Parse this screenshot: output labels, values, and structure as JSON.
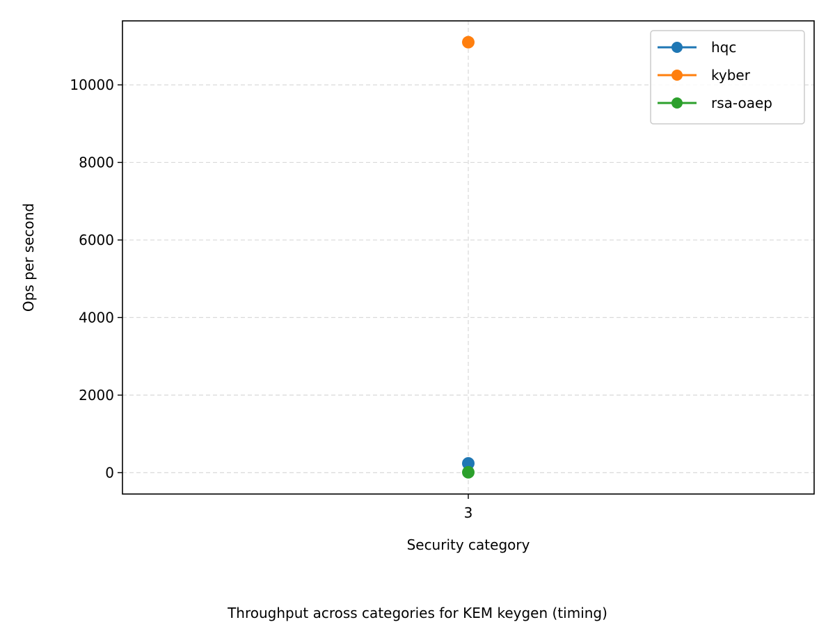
{
  "chart_data": {
    "type": "line",
    "caption": "Throughput across categories for KEM keygen (timing)",
    "xlabel": "Security category",
    "ylabel": "Ops per second",
    "categories": [
      "3"
    ],
    "x": [
      3
    ],
    "xlim": [
      2,
      4
    ],
    "ylim": [
      -550,
      11650
    ],
    "yticks": [
      0,
      2000,
      4000,
      6000,
      8000,
      10000
    ],
    "grid": true,
    "legend_position": "top-right",
    "series": [
      {
        "name": "hqc",
        "color": "#1f77b4",
        "values": [
          240
        ]
      },
      {
        "name": "kyber",
        "color": "#ff7f0e",
        "values": [
          11100
        ]
      },
      {
        "name": "rsa-oaep",
        "color": "#2ca02c",
        "values": [
          10
        ]
      }
    ]
  }
}
